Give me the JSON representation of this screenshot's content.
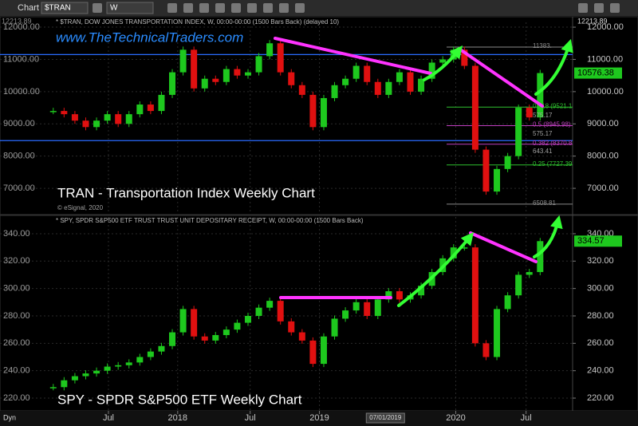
{
  "toolbar": {
    "title": "Chart",
    "symbol": "$TRAN",
    "interval": "W"
  },
  "footer": {
    "mode": "Dyn"
  },
  "chart_data": [
    {
      "type": "candlestick",
      "legend_text": "* $TRAN, DOW JONES TRANSPORTATION INDEX, W, 00:00-00:00 (1500 Bars Back) (delayed 10)",
      "website": "www.TheTechnicalTraders.com",
      "title": "TRAN - Transportation Index Weekly Chart",
      "credit": "© eSignal, 2020",
      "axis_top_label": "12213.89",
      "up_color": "#1ec81e",
      "down_color": "#e01010",
      "values": [
        9400,
        9300,
        9100,
        8900,
        9100,
        9300,
        9000,
        9300,
        9600,
        9400,
        9900,
        10600,
        11300,
        10100,
        10400,
        10300,
        10700,
        10500,
        10600,
        11100,
        11500,
        10600,
        10200,
        9900,
        8900,
        9800,
        10200,
        10400,
        10800,
        10300,
        9900,
        10300,
        10600,
        10000,
        10400,
        10900,
        11000,
        11300,
        10800,
        8200,
        6900,
        7600,
        8000,
        9500,
        9200,
        10576.38
      ],
      "xlim": [
        -0.5,
        48
      ],
      "ylim": [
        6210,
        12150
      ],
      "yticks": [
        {
          "value": 7000,
          "label": "7000.00"
        },
        {
          "value": 8000,
          "label": "8000.00"
        },
        {
          "value": 9000,
          "label": "9000.00"
        },
        {
          "value": 10000,
          "label": "10000.00"
        },
        {
          "value": 11000,
          "label": "11000.00"
        },
        {
          "value": 12000,
          "label": "12000.00"
        }
      ],
      "hlines": [
        {
          "value": 11150,
          "color": "#2a6cff"
        },
        {
          "value": 8480,
          "color": "#2a6cff"
        }
      ],
      "fib_levels": [
        {
          "value": 11383,
          "label": "11383.",
          "color": "#8a8a8a"
        },
        {
          "value": 9521.15,
          "label": "0.618 (9521.15",
          "color": "#2fbf2f"
        },
        {
          "value": 8945.98,
          "label": "0.5 (8945.98)",
          "color": "#c040c0"
        },
        {
          "value": 8370.81,
          "label": "0.382 (8370.81",
          "color": "#c040c0"
        },
        {
          "value": 7727.39,
          "label": "0.25 (7727.39)",
          "color": "#2fbf2f"
        },
        {
          "value": 6508.81,
          "label": "6508.81",
          "color": "#8a8a8a"
        }
      ],
      "notes": [
        "575.17",
        "575.17",
        "643.41"
      ],
      "grid": true
    },
    {
      "type": "candlestick",
      "legend_text": "* SPY, SPDR S&P500 ETF TRUST TRUST UNIT DEPOSITARY RECEIPT, W, 00:00-00:00 (1500 Bars Back)",
      "title": "SPY - SPDR S&P500 ETF Weekly Chart",
      "up_color": "#1ec81e",
      "down_color": "#e01010",
      "values": [
        228,
        233,
        236,
        238,
        240,
        243,
        244,
        246,
        250,
        254,
        258,
        268,
        285,
        265,
        262,
        266,
        270,
        275,
        280,
        286,
        291,
        276,
        268,
        262,
        245,
        265,
        278,
        284,
        290,
        280,
        292,
        298,
        292,
        295,
        302,
        312,
        322,
        330,
        330,
        260,
        250,
        285,
        295,
        310,
        312,
        334.57
      ],
      "xlim": [
        -0.5,
        48
      ],
      "ylim": [
        210.7,
        352.2
      ],
      "yticks": [
        {
          "value": 220,
          "label": "220.00"
        },
        {
          "value": 240,
          "label": "240.00"
        },
        {
          "value": 260,
          "label": "260.00"
        },
        {
          "value": 280,
          "label": "280.00"
        },
        {
          "value": 300,
          "label": "300.00"
        },
        {
          "value": 320,
          "label": "320.00"
        },
        {
          "value": 340,
          "label": "340.00"
        }
      ],
      "xticks": [
        {
          "value": 5.1,
          "label": "Jul"
        },
        {
          "value": 11.5,
          "label": "2018"
        },
        {
          "value": 18.2,
          "label": "Jul"
        },
        {
          "value": 24.6,
          "label": "2019"
        },
        {
          "value": 37.2,
          "label": "2020"
        },
        {
          "value": 43.7,
          "label": "Jul"
        }
      ],
      "x_cursor": {
        "value": 30.7,
        "label": "07/01/2019"
      },
      "grid": true
    }
  ]
}
